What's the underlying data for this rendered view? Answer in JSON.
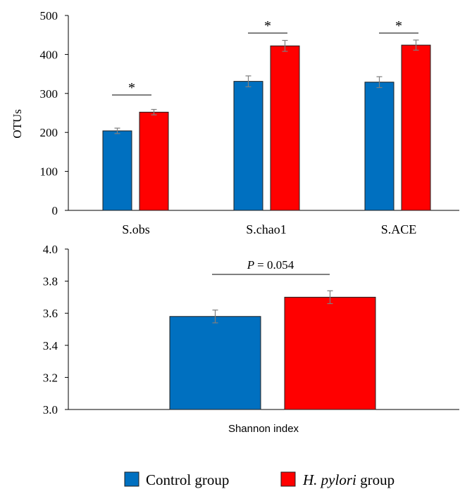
{
  "chart_data": [
    {
      "type": "bar",
      "categories": [
        "S.obs",
        "S.chao1",
        "S.ACE"
      ],
      "series": [
        {
          "name": "Control group",
          "color": "#0070C0",
          "values": [
            204,
            331,
            329
          ],
          "errors": [
            7,
            14,
            14
          ]
        },
        {
          "name": "H. pylori group",
          "color": "#FF0000",
          "values": [
            252,
            422,
            424
          ],
          "errors": [
            7,
            14,
            13
          ]
        }
      ],
      "ylabel": "OTUs",
      "ylim": [
        0,
        500
      ],
      "yticks": [
        "0",
        "100",
        "200",
        "300",
        "400",
        "500"
      ],
      "significance": [
        "*",
        "*",
        "*"
      ],
      "grid": false
    },
    {
      "type": "bar",
      "categories": [
        "Shannon index"
      ],
      "series": [
        {
          "name": "Control group",
          "color": "#0070C0",
          "values": [
            3.58
          ],
          "errors": [
            0.04
          ]
        },
        {
          "name": "H. pylori group",
          "color": "#FF0000",
          "values": [
            3.7
          ],
          "errors": [
            0.04
          ]
        }
      ],
      "xlabel": "Shannon index",
      "ylim": [
        3.0,
        4.0
      ],
      "yticks": [
        "3.0",
        "3.2",
        "3.4",
        "3.6",
        "3.8",
        "4.0"
      ],
      "annotation": {
        "p_label": "P",
        "p_value": "= 0.054"
      },
      "grid": false
    }
  ],
  "legend": {
    "placement": "bottom",
    "items": [
      {
        "label": "Control group",
        "italic_part": "",
        "rest": "Control group",
        "color": "#0070C0"
      },
      {
        "label": "H. pylori group",
        "italic_part": "H. pylori",
        "rest": " group",
        "color": "#FF0000"
      }
    ]
  }
}
